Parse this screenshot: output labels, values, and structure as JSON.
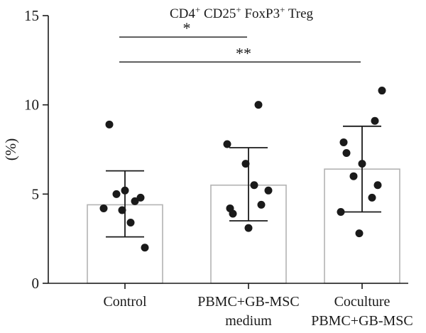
{
  "chart_data": {
    "type": "bar",
    "title_parts": [
      {
        "t": "CD4"
      },
      {
        "t": "+",
        "sup": true
      },
      {
        "t": " CD25"
      },
      {
        "t": "+",
        "sup": true
      },
      {
        "t": " FoxP3"
      },
      {
        "t": "+",
        "sup": true
      },
      {
        "t": " Treg"
      }
    ],
    "ylabel": "(%)",
    "xlabel": "",
    "ylim": [
      0,
      15
    ],
    "yticks": [
      0,
      5,
      10,
      15
    ],
    "categories": [
      [
        "Control"
      ],
      [
        "PBMC+GB-MSC",
        "medium"
      ],
      [
        "Coculture",
        "PBMC+GB-MSC"
      ]
    ],
    "values": [
      4.4,
      5.5,
      6.4
    ],
    "error_low": [
      2.6,
      3.5,
      4.0
    ],
    "error_high": [
      6.3,
      7.6,
      8.8
    ],
    "points": [
      [
        8.9,
        5.2,
        5.0,
        4.8,
        4.6,
        4.2,
        4.1,
        3.4,
        2.0
      ],
      [
        10.0,
        7.8,
        6.7,
        5.5,
        5.2,
        4.4,
        4.2,
        3.9,
        3.1
      ],
      [
        10.8,
        9.1,
        7.9,
        7.3,
        6.7,
        6.0,
        5.5,
        4.8,
        4.0,
        2.8
      ]
    ],
    "significance": [
      {
        "from": 0,
        "to": 1,
        "y": 13.8,
        "label": "*"
      },
      {
        "from": 0,
        "to": 2,
        "y": 12.4,
        "label": "**"
      }
    ],
    "grid": false,
    "legend": "none",
    "colors": {
      "bar_edge": "#b3b3b3",
      "bar_fill": "#ffffff",
      "point": "#1a1a1a",
      "axis": "#1a1a1a"
    }
  }
}
